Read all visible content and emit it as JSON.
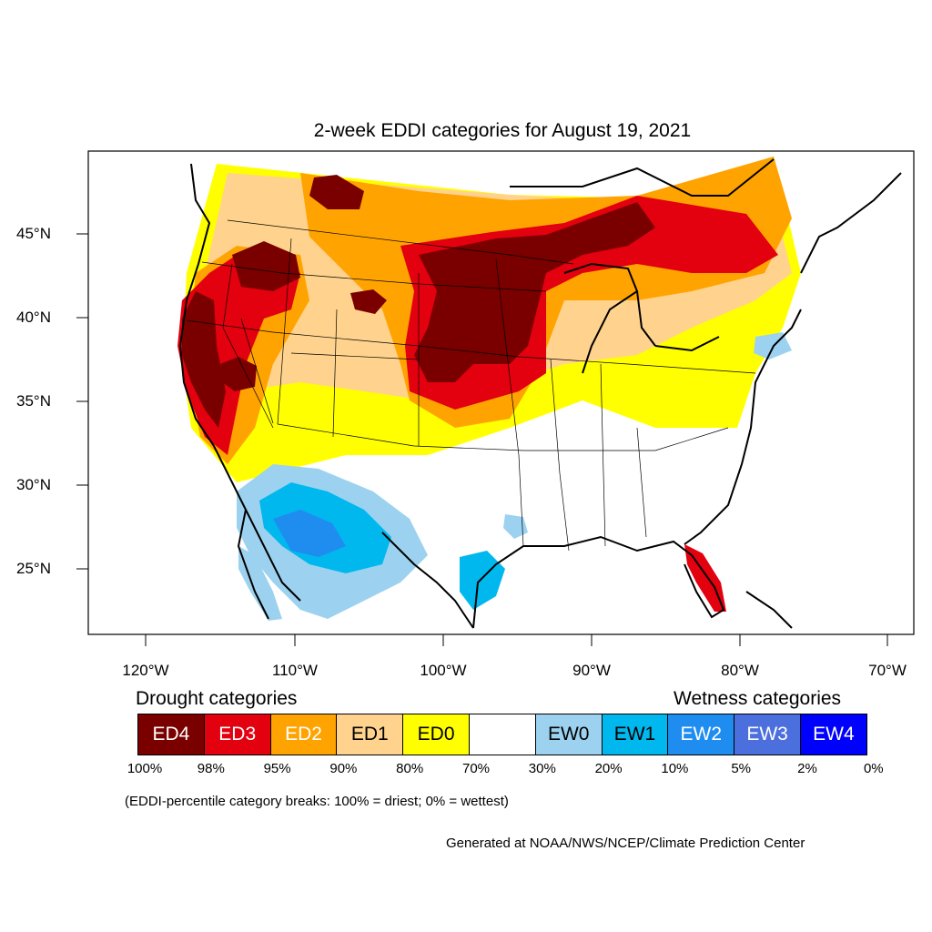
{
  "title": "2-week EDDI categories for August 19, 2021",
  "latitude_labels": [
    "45°N",
    "40°N",
    "35°N",
    "30°N",
    "25°N"
  ],
  "longitude_labels": [
    "120°W",
    "110°W",
    "100°W",
    "90°W",
    "80°W",
    "70°W"
  ],
  "drought_heading": "Drought categories",
  "wetness_heading": "Wetness categories",
  "legend": [
    {
      "label": "ED4",
      "color": "#7a0000",
      "text_color": "#ffffff"
    },
    {
      "label": "ED3",
      "color": "#e3000f",
      "text_color": "#ffffff"
    },
    {
      "label": "ED2",
      "color": "#ffa300",
      "text_color": "#ffffff"
    },
    {
      "label": "ED1",
      "color": "#ffd38d",
      "text_color": "#000000"
    },
    {
      "label": "ED0",
      "color": "#ffff00",
      "text_color": "#000000"
    },
    {
      "label": "",
      "color": "#ffffff",
      "text_color": "#000000"
    },
    {
      "label": "EW0",
      "color": "#9cd2ef",
      "text_color": "#000000"
    },
    {
      "label": "EW1",
      "color": "#00b8ee",
      "text_color": "#000000"
    },
    {
      "label": "EW2",
      "color": "#1f8cf0",
      "text_color": "#ffffff"
    },
    {
      "label": "EW3",
      "color": "#4c6fde",
      "text_color": "#ffffff"
    },
    {
      "label": "EW4",
      "color": "#0000ff",
      "text_color": "#ffffff"
    }
  ],
  "percent_breaks": [
    "100%",
    "98%",
    "95%",
    "90%",
    "80%",
    "70%",
    "30%",
    "20%",
    "10%",
    "5%",
    "2%",
    "0%"
  ],
  "note": "(EDDI-percentile category breaks: 100% = driest; 0% = wettest)",
  "credit": "Generated at NOAA/NWS/NCEP/Climate Prediction Center"
}
